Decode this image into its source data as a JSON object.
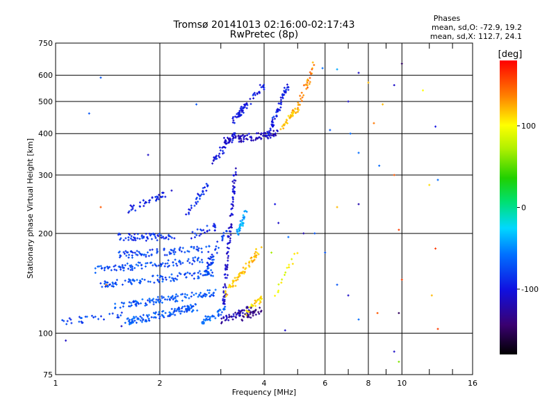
{
  "chart_data": {
    "type": "scatter",
    "title": "Tromsø 20141013 02:16:00-02:17:43",
    "subtitle": "RwPretec (8p)",
    "xlabel": "Frequency [MHz]",
    "ylabel": "Stationary phase Virtual Height [km]",
    "x_scale": "log",
    "y_scale": "log",
    "xlim": [
      1,
      16
    ],
    "ylim": [
      75,
      750
    ],
    "x_ticks": [
      1,
      2,
      4,
      6,
      8,
      10,
      16
    ],
    "x_tick_labels": [
      "1",
      "2",
      "4",
      "6",
      "8",
      "10",
      "16"
    ],
    "x_minor_ticks": [
      3,
      5,
      7,
      9,
      12,
      14
    ],
    "y_ticks": [
      75,
      100,
      200,
      300,
      400,
      500,
      600,
      750
    ],
    "y_tick_labels": [
      "75",
      "100",
      "200",
      "300",
      "400",
      "500",
      "600",
      "750"
    ],
    "grid": true,
    "phase_info": {
      "heading": "Phases",
      "line_o": "mean, sd,O: -72.9, 19.2",
      "line_x": "mean, sd,X: 112.7, 24.1"
    },
    "colorbar": {
      "label": "[deg]",
      "range": [
        -180,
        180
      ],
      "ticks": [
        100,
        0,
        -100
      ],
      "tick_labels": [
        "100",
        "0",
        "-100"
      ]
    },
    "traces": [
      {
        "f0": 1.05,
        "f1": 1.55,
        "h0": 108,
        "h1": 113,
        "phase": -75,
        "n": 30
      },
      {
        "f0": 1.6,
        "f1": 2.55,
        "h0": 108,
        "h1": 120,
        "phase": -70,
        "n": 120
      },
      {
        "f0": 2.6,
        "f1": 3.1,
        "h0": 108,
        "h1": 118,
        "phase": -62,
        "n": 40
      },
      {
        "f0": 1.45,
        "f1": 2.9,
        "h0": 120,
        "h1": 133,
        "phase": -72,
        "n": 110
      },
      {
        "f0": 1.35,
        "f1": 2.9,
        "h0": 140,
        "h1": 152,
        "phase": -74,
        "n": 110
      },
      {
        "f0": 1.3,
        "f1": 2.9,
        "h0": 155,
        "h1": 168,
        "phase": -76,
        "n": 100
      },
      {
        "f0": 1.5,
        "f1": 2.8,
        "h0": 172,
        "h1": 180,
        "phase": -78,
        "n": 80
      },
      {
        "f0": 1.5,
        "f1": 2.2,
        "h0": 195,
        "h1": 195,
        "phase": -85,
        "n": 60
      },
      {
        "f0": 1.6,
        "f1": 2.15,
        "h0": 235,
        "h1": 265,
        "phase": -95,
        "n": 40
      },
      {
        "f0": 2.4,
        "f1": 2.75,
        "h0": 230,
        "h1": 280,
        "phase": -90,
        "n": 30
      },
      {
        "f0": 2.7,
        "f1": 3.1,
        "h0": 150,
        "h1": 205,
        "phase": -80,
        "n": 40
      },
      {
        "f0": 3.05,
        "f1": 3.3,
        "h0": 120,
        "h1": 310,
        "phase": -110,
        "n": 90
      },
      {
        "f0": 3.0,
        "f1": 3.75,
        "h0": 108,
        "h1": 120,
        "phase": -120,
        "n": 50
      },
      {
        "f0": 3.4,
        "f1": 3.95,
        "h0": 110,
        "h1": 118,
        "phase": -140,
        "n": 30
      },
      {
        "f0": 3.55,
        "f1": 4.0,
        "h0": 115,
        "h1": 130,
        "phase": 110,
        "n": 25
      },
      {
        "f0": 3.1,
        "f1": 3.9,
        "h0": 132,
        "h1": 180,
        "phase": 118,
        "n": 60
      },
      {
        "f0": 3.35,
        "f1": 3.55,
        "h0": 200,
        "h1": 230,
        "phase": -40,
        "n": 35
      },
      {
        "f0": 2.85,
        "f1": 3.3,
        "h0": 330,
        "h1": 400,
        "phase": -100,
        "n": 40
      },
      {
        "f0": 3.0,
        "f1": 4.4,
        "h0": 380,
        "h1": 400,
        "phase": -115,
        "n": 90
      },
      {
        "f0": 3.2,
        "f1": 4.0,
        "h0": 430,
        "h1": 560,
        "phase": -98,
        "n": 60
      },
      {
        "f0": 4.1,
        "f1": 4.7,
        "h0": 400,
        "h1": 560,
        "phase": -95,
        "n": 60
      },
      {
        "f0": 4.5,
        "f1": 5.0,
        "h0": 420,
        "h1": 480,
        "phase": 120,
        "n": 40
      },
      {
        "f0": 5.0,
        "f1": 5.6,
        "h0": 480,
        "h1": 650,
        "phase": 135,
        "n": 30
      },
      {
        "f0": 4.3,
        "f1": 5.0,
        "h0": 130,
        "h1": 180,
        "phase": 95,
        "n": 15
      },
      {
        "f0": 2.4,
        "f1": 2.9,
        "h0": 195,
        "h1": 210,
        "phase": -90,
        "n": 25
      }
    ],
    "scattered_points": [
      {
        "f": 1.35,
        "h": 590,
        "phase": -70
      },
      {
        "f": 1.25,
        "h": 460,
        "phase": -70
      },
      {
        "f": 1.35,
        "h": 240,
        "phase": 150
      },
      {
        "f": 1.85,
        "h": 345,
        "phase": -110
      },
      {
        "f": 2.55,
        "h": 490,
        "phase": -70
      },
      {
        "f": 1.07,
        "h": 95,
        "phase": -110
      },
      {
        "f": 5.9,
        "h": 630,
        "phase": -60
      },
      {
        "f": 6.5,
        "h": 625,
        "phase": -40
      },
      {
        "f": 7.5,
        "h": 610,
        "phase": -110
      },
      {
        "f": 8.0,
        "h": 570,
        "phase": 120
      },
      {
        "f": 9.5,
        "h": 560,
        "phase": -110
      },
      {
        "f": 10.0,
        "h": 650,
        "phase": -150
      },
      {
        "f": 11.5,
        "h": 540,
        "phase": 100
      },
      {
        "f": 7.0,
        "h": 500,
        "phase": -110
      },
      {
        "f": 8.8,
        "h": 490,
        "phase": 120
      },
      {
        "f": 6.2,
        "h": 410,
        "phase": -70
      },
      {
        "f": 7.1,
        "h": 400,
        "phase": -60
      },
      {
        "f": 8.3,
        "h": 430,
        "phase": 140
      },
      {
        "f": 12.5,
        "h": 420,
        "phase": -100
      },
      {
        "f": 7.5,
        "h": 350,
        "phase": -60
      },
      {
        "f": 8.6,
        "h": 320,
        "phase": -60
      },
      {
        "f": 9.5,
        "h": 300,
        "phase": 150
      },
      {
        "f": 12.0,
        "h": 280,
        "phase": 110
      },
      {
        "f": 12.7,
        "h": 290,
        "phase": -60
      },
      {
        "f": 6.5,
        "h": 240,
        "phase": 120
      },
      {
        "f": 7.5,
        "h": 245,
        "phase": -120
      },
      {
        "f": 9.8,
        "h": 205,
        "phase": 160
      },
      {
        "f": 12.5,
        "h": 180,
        "phase": 160
      },
      {
        "f": 5.6,
        "h": 200,
        "phase": -70
      },
      {
        "f": 6.0,
        "h": 175,
        "phase": -70
      },
      {
        "f": 6.5,
        "h": 140,
        "phase": -70
      },
      {
        "f": 7.0,
        "h": 130,
        "phase": -110
      },
      {
        "f": 8.5,
        "h": 115,
        "phase": 150
      },
      {
        "f": 9.8,
        "h": 115,
        "phase": -150
      },
      {
        "f": 7.5,
        "h": 110,
        "phase": -60
      },
      {
        "f": 10.0,
        "h": 145,
        "phase": 160
      },
      {
        "f": 12.2,
        "h": 130,
        "phase": 120
      },
      {
        "f": 9.5,
        "h": 88,
        "phase": -110
      },
      {
        "f": 9.8,
        "h": 82,
        "phase": 60
      },
      {
        "f": 12.7,
        "h": 103,
        "phase": 160
      },
      {
        "f": 4.6,
        "h": 102,
        "phase": -110
      },
      {
        "f": 1.55,
        "h": 105,
        "phase": -110
      },
      {
        "f": 1.4,
        "h": 140,
        "phase": 140
      },
      {
        "f": 4.3,
        "h": 245,
        "phase": -100
      },
      {
        "f": 4.4,
        "h": 215,
        "phase": -110
      },
      {
        "f": 5.2,
        "h": 200,
        "phase": -120
      },
      {
        "f": 4.7,
        "h": 195,
        "phase": -60
      },
      {
        "f": 4.2,
        "h": 175,
        "phase": 70
      }
    ]
  }
}
